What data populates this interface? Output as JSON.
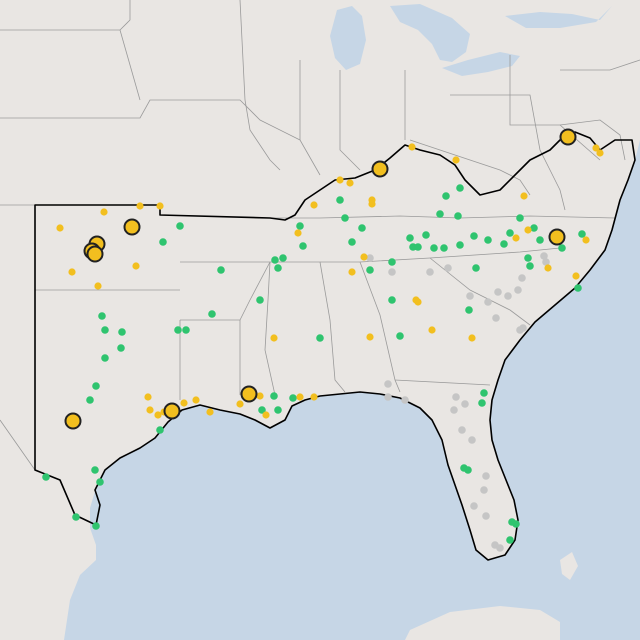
{
  "map": {
    "kind": "point-map",
    "region": "southern-united-states",
    "basemap_colors": {
      "land": "#e9e6e3",
      "water": "#c6d6e6",
      "state_borders": "#9a9a9a",
      "region_outline": "#000000"
    },
    "marker_colors": {
      "green": "#2fc46f",
      "gold": "#f2bf1f",
      "gray": "#c5c5c5",
      "large_gold_fill": "#f2bf1f",
      "large_gold_stroke": "#222222"
    },
    "legend": null
  }
}
